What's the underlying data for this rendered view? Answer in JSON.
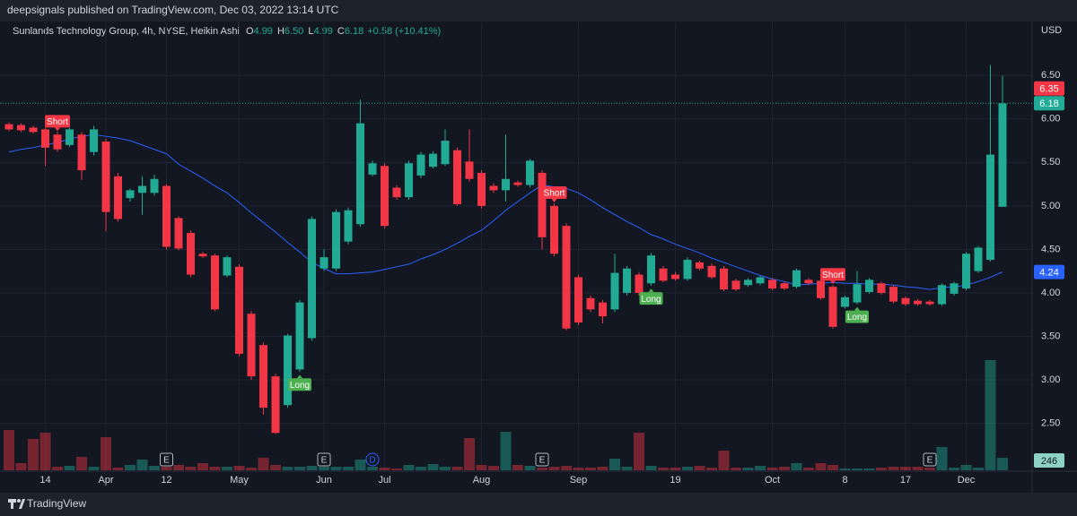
{
  "header": {
    "title": "deepsignals published on TradingView.com, Dec 03, 2022 13:14 UTC"
  },
  "footer": {
    "brand": "TradingView"
  },
  "chart_data": {
    "type": "candlestick",
    "legend": {
      "name": "Sunlands Technology Group, 4h, NYSE, Heikin Ashi",
      "ohlc": [
        {
          "key": "O",
          "value": "4.99"
        },
        {
          "key": "H",
          "value": "6.50"
        },
        {
          "key": "L",
          "value": "4.99"
        },
        {
          "key": "C",
          "value": "6.18"
        }
      ],
      "change": "+0.58 (+10.41%)"
    },
    "currency": "USD",
    "up_color": "#22ab94",
    "down_color": "#f23645",
    "open": [
      5.94,
      5.93,
      5.9,
      5.88,
      5.82,
      5.7,
      5.82,
      5.62,
      5.74,
      5.34,
      5.09,
      5.15,
      5.15,
      5.23,
      4.86,
      4.69,
      4.45,
      4.43,
      4.2,
      4.3,
      3.76,
      3.4,
      3.04,
      2.71,
      3.12,
      3.48,
      4.28,
      4.28,
      4.59,
      4.79,
      5.36,
      5.46,
      5.21,
      5.1,
      5.35,
      5.45,
      5.48,
      5.64,
      5.51,
      5.38,
      5.23,
      5.18,
      5.27,
      5.24,
      5.38,
      5.0,
      4.77,
      4.18,
      3.94,
      3.89,
      3.81,
      4.0,
      4.21,
      4.11,
      4.28,
      4.21,
      4.16,
      4.35,
      4.31,
      4.28,
      4.14,
      4.09,
      4.11,
      4.15,
      4.11,
      4.07,
      4.15,
      4.14,
      4.07,
      3.84,
      3.89,
      4.01,
      4.11,
      4.07,
      3.94,
      3.91,
      3.9,
      3.87,
      3.99,
      4.05,
      4.25,
      4.38,
      4.99
    ],
    "high": [
      5.96,
      5.95,
      5.92,
      5.9,
      5.85,
      5.9,
      5.85,
      5.92,
      5.77,
      5.38,
      5.2,
      5.34,
      5.36,
      5.25,
      4.88,
      4.72,
      4.47,
      4.45,
      4.43,
      4.33,
      3.79,
      3.43,
      3.07,
      3.53,
      3.92,
      4.88,
      4.5,
      4.96,
      4.98,
      6.22,
      5.52,
      5.49,
      5.24,
      5.52,
      5.62,
      5.63,
      5.88,
      5.67,
      5.88,
      5.41,
      5.26,
      5.82,
      5.29,
      5.54,
      5.41,
      5.03,
      4.8,
      4.21,
      3.97,
      3.92,
      4.45,
      4.31,
      4.24,
      4.46,
      4.31,
      4.24,
      4.41,
      4.37,
      4.34,
      4.31,
      4.16,
      4.17,
      4.2,
      4.17,
      4.13,
      4.28,
      4.17,
      4.16,
      4.09,
      3.97,
      4.25,
      4.17,
      4.13,
      4.09,
      3.96,
      3.93,
      3.92,
      4.11,
      4.13,
      4.47,
      4.54,
      6.62,
      6.5
    ],
    "low": [
      5.86,
      5.85,
      5.83,
      5.46,
      5.62,
      5.68,
      5.3,
      5.58,
      4.71,
      4.82,
      5.05,
      4.9,
      5.12,
      4.5,
      4.49,
      4.18,
      4.4,
      3.79,
      4.18,
      3.27,
      3.0,
      2.6,
      2.38,
      2.68,
      3.09,
      3.45,
      4.25,
      4.25,
      4.56,
      4.76,
      5.34,
      4.74,
      5.07,
      5.07,
      5.32,
      5.43,
      5.46,
      5.0,
      5.28,
      4.97,
      5.15,
      5.05,
      5.22,
      5.21,
      4.5,
      4.42,
      3.57,
      3.63,
      3.78,
      3.65,
      3.78,
      3.97,
      3.97,
      4.08,
      4.12,
      4.14,
      4.14,
      4.26,
      4.16,
      4.02,
      4.02,
      4.07,
      4.09,
      4.03,
      4.03,
      4.05,
      4.09,
      3.92,
      3.59,
      3.82,
      3.87,
      3.99,
      3.98,
      3.88,
      3.85,
      3.85,
      3.85,
      3.85,
      3.97,
      4.03,
      4.23,
      4.36,
      4.99
    ],
    "close": [
      5.88,
      5.87,
      5.85,
      5.67,
      5.65,
      5.88,
      5.41,
      5.88,
      4.93,
      4.85,
      5.18,
      5.23,
      5.31,
      4.53,
      4.51,
      4.21,
      4.42,
      3.81,
      4.41,
      3.3,
      3.04,
      2.68,
      2.39,
      3.51,
      3.89,
      4.85,
      4.41,
      4.93,
      4.95,
      5.95,
      5.49,
      4.77,
      5.1,
      5.49,
      5.59,
      5.6,
      5.75,
      5.02,
      5.31,
      5.0,
      5.18,
      5.31,
      5.24,
      5.52,
      4.64,
      4.45,
      3.59,
      3.66,
      3.81,
      3.73,
      4.23,
      4.28,
      4.0,
      4.43,
      4.14,
      4.16,
      4.38,
      4.28,
      4.18,
      4.04,
      4.04,
      4.15,
      4.18,
      4.05,
      4.05,
      4.26,
      4.11,
      3.94,
      3.61,
      3.95,
      4.1,
      4.15,
      4.0,
      3.9,
      3.87,
      3.87,
      3.87,
      4.09,
      4.11,
      4.45,
      4.52,
      5.59,
      6.18
    ],
    "volume": [
      792,
      141,
      616,
      739,
      70,
      88,
      264,
      70,
      651,
      53,
      106,
      211,
      88,
      70,
      106,
      70,
      141,
      70,
      70,
      88,
      53,
      246,
      106,
      70,
      70,
      88,
      70,
      70,
      70,
      211,
      70,
      53,
      35,
      106,
      70,
      123,
      70,
      70,
      634,
      106,
      88,
      757,
      106,
      88,
      53,
      70,
      88,
      53,
      53,
      70,
      229,
      70,
      739,
      88,
      53,
      53,
      70,
      88,
      53,
      387,
      53,
      53,
      88,
      53,
      70,
      141,
      53,
      141,
      106,
      35,
      35,
      35,
      53,
      70,
      70,
      70,
      53,
      458,
      53,
      106,
      53,
      2165,
      246
    ],
    "ma": {
      "color": "#2962ff",
      "values": [
        5.62,
        5.65,
        5.67,
        5.7,
        5.73,
        5.77,
        5.8,
        5.82,
        5.8,
        5.78,
        5.75,
        5.7,
        5.65,
        5.6,
        5.48,
        5.4,
        5.32,
        5.23,
        5.15,
        5.04,
        4.92,
        4.81,
        4.7,
        4.58,
        4.47,
        4.35,
        4.28,
        4.22,
        4.22,
        4.23,
        4.24,
        4.27,
        4.3,
        4.33,
        4.39,
        4.44,
        4.5,
        4.57,
        4.65,
        4.72,
        4.83,
        4.95,
        5.05,
        5.15,
        5.24,
        5.22,
        5.2,
        5.15,
        5.07,
        4.98,
        4.9,
        4.82,
        4.75,
        4.67,
        4.62,
        4.56,
        4.51,
        4.46,
        4.4,
        4.35,
        4.3,
        4.25,
        4.2,
        4.16,
        4.13,
        4.09,
        4.1,
        4.11,
        4.12,
        4.11,
        4.11,
        4.1,
        4.1,
        4.09,
        4.07,
        4.06,
        4.04,
        4.06,
        4.07,
        4.09,
        4.13,
        4.18,
        4.24
      ]
    },
    "price_marker": 6.35,
    "ylim": [
      1.96,
      7.11
    ],
    "yticks": [
      {
        "value": 2.5,
        "label": "2.50"
      },
      {
        "value": 3,
        "label": "3.00"
      },
      {
        "value": 3.5,
        "label": "3.50"
      },
      {
        "value": 4,
        "label": "4.00"
      },
      {
        "value": 4.5,
        "label": "4.50"
      },
      {
        "value": 5,
        "label": "5.00"
      },
      {
        "value": 5.5,
        "label": "5.50"
      },
      {
        "value": 6,
        "label": "6.00"
      },
      {
        "value": 6.5,
        "label": "6.50"
      }
    ],
    "xticks": [
      {
        "value": 3,
        "label": "14"
      },
      {
        "value": 8,
        "label": "Apr"
      },
      {
        "value": 13,
        "label": "12"
      },
      {
        "value": 19,
        "label": "May"
      },
      {
        "value": 26,
        "label": "Jun"
      },
      {
        "value": 31,
        "label": "Jul"
      },
      {
        "value": 39,
        "label": "Aug"
      },
      {
        "value": 47,
        "label": "Sep"
      },
      {
        "value": 55,
        "label": "19"
      },
      {
        "value": 63,
        "label": "Oct"
      },
      {
        "value": 69,
        "label": "8"
      },
      {
        "value": 74,
        "label": "17"
      },
      {
        "value": 79,
        "label": "Dec"
      }
    ],
    "grid": true,
    "signals": [
      {
        "label": "Short",
        "index": 4
      },
      {
        "label": "Long",
        "index": 24
      },
      {
        "label": "Short",
        "index": 45
      },
      {
        "label": "Long",
        "index": 53
      },
      {
        "label": "Short",
        "index": 68
      },
      {
        "label": "Long",
        "index": 70
      }
    ],
    "events": [
      {
        "label": "E",
        "index": 13
      },
      {
        "label": "E",
        "index": 26
      },
      {
        "label": "D",
        "index": 30
      },
      {
        "label": "E",
        "index": 44
      },
      {
        "label": "E",
        "index": 76
      }
    ]
  }
}
